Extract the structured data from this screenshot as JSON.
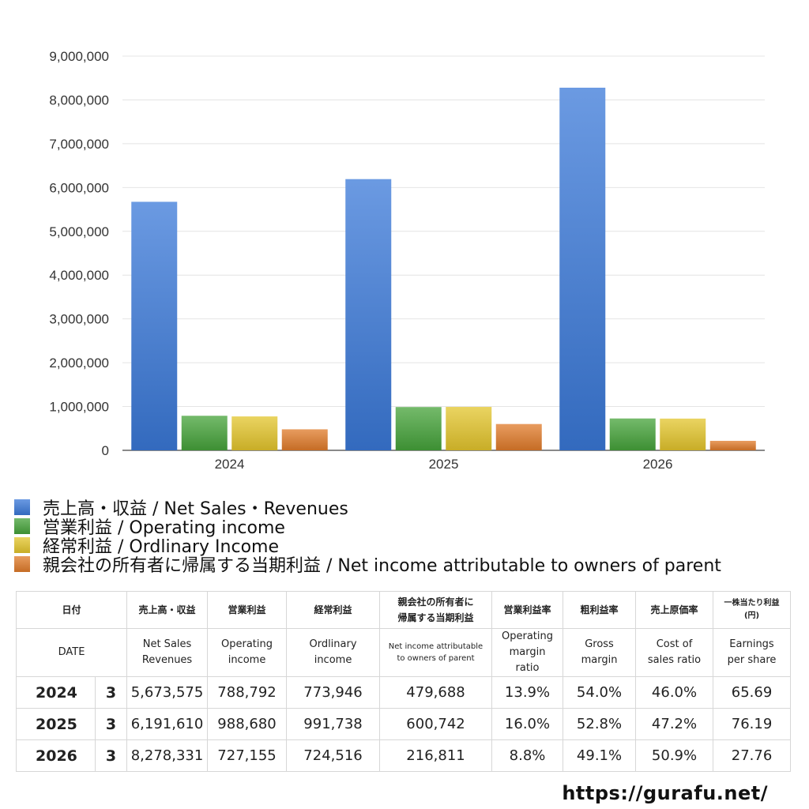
{
  "chart_data": {
    "type": "bar",
    "categories": [
      "2024",
      "2025",
      "2026"
    ],
    "series": [
      {
        "name": "売上高・収益 / Net Sales・Revenues",
        "values": [
          5673575,
          6191610,
          8278331
        ],
        "color": "#3a78d8"
      },
      {
        "name": "営業利益 / Operating income",
        "values": [
          788792,
          988680,
          727155
        ],
        "color": "#45a33a"
      },
      {
        "name": "経常利益 / Ordlinary Income",
        "values": [
          773946,
          991738,
          724516
        ],
        "color": "#e3c52c"
      },
      {
        "name": "親会社の所有者に帰属する当期利益 / Net income attributable to owners of parent",
        "values": [
          479688,
          600742,
          216811
        ],
        "color": "#e07b2a"
      }
    ],
    "ylim": [
      0,
      9000000
    ],
    "yticks": [
      "0",
      "1,000,000",
      "2,000,000",
      "3,000,000",
      "4,000,000",
      "5,000,000",
      "6,000,000",
      "7,000,000",
      "8,000,000",
      "9,000,000"
    ],
    "grid": true,
    "legend_position": "bottom-left"
  },
  "table": {
    "header_jp": {
      "date": "日付",
      "net_sales": "売上高・収益",
      "operating_income": "営業利益",
      "ordinary_income": "経常利益",
      "net_income_l1": "親会社の所有者に",
      "net_income_l2": "帰属する当期利益",
      "op_margin": "営業利益率",
      "gross_margin": "粗利益率",
      "cost_ratio": "売上原価率",
      "eps_l1": "一株当たり利益",
      "eps_l2": "(円)"
    },
    "header_en": {
      "date": "DATE",
      "net_sales_l1": "Net Sales",
      "net_sales_l2": "Revenues",
      "operating_l1": "Operating",
      "operating_l2": "income",
      "ordinary_l1": "Ordlinary",
      "ordinary_l2": "income",
      "net_income_l1": "Net income attributable",
      "net_income_l2": "to owners of parent",
      "op_margin_l1": "Operating",
      "op_margin_l2": "margin",
      "op_margin_l3": "ratio",
      "gross_l1": "Gross",
      "gross_l2": "margin",
      "cost_l1": "Cost of",
      "cost_l2": "sales ratio",
      "eps_l1": "Earnings",
      "eps_l2": "per share"
    },
    "rows": [
      {
        "year": "2024",
        "month": "3",
        "net_sales": "5,673,575",
        "operating": "788,792",
        "ordinary": "773,946",
        "net_income": "479,688",
        "op_margin": "13.9%",
        "gross": "54.0%",
        "cost": "46.0%",
        "eps": "65.69"
      },
      {
        "year": "2025",
        "month": "3",
        "net_sales": "6,191,610",
        "operating": "988,680",
        "ordinary": "991,738",
        "net_income": "600,742",
        "op_margin": "16.0%",
        "gross": "52.8%",
        "cost": "47.2%",
        "eps": "76.19"
      },
      {
        "year": "2026",
        "month": "3",
        "net_sales": "8,278,331",
        "operating": "727,155",
        "ordinary": "724,516",
        "net_income": "216,811",
        "op_margin": "8.8%",
        "gross": "49.1%",
        "cost": "50.9%",
        "eps": "27.76"
      }
    ]
  },
  "footer": {
    "url": "https://gurafu.net/"
  }
}
